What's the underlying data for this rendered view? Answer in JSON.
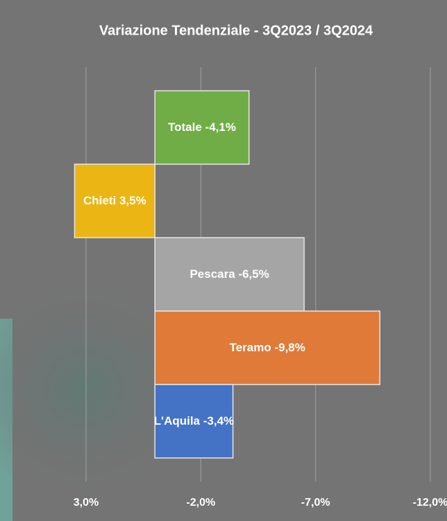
{
  "chart_data": {
    "type": "bar",
    "orientation": "horizontal",
    "title": "Variazione Tendenziale - 3Q2023 / 3Q2024",
    "categories": [
      "Totale",
      "Chieti",
      "Pescara",
      "Teramo",
      "L'Aquila"
    ],
    "values": [
      -4.1,
      3.5,
      -6.5,
      -9.8,
      -3.4
    ],
    "value_labels": [
      "-4,1%",
      "3,5%",
      "-6,5%",
      "-9,8%",
      "-3,4%"
    ],
    "colors": [
      "#70ad47",
      "#ebb514",
      "#a5a5a5",
      "#e07a38",
      "#4472c4"
    ],
    "xlim": [
      3,
      -12
    ],
    "xticks": [
      {
        "value": 3,
        "label": "3,0%"
      },
      {
        "value": -2,
        "label": "-2,0%"
      },
      {
        "value": -7,
        "label": "-7,0%"
      },
      {
        "value": -12,
        "label": "-12,0%"
      }
    ],
    "grid": true
  }
}
